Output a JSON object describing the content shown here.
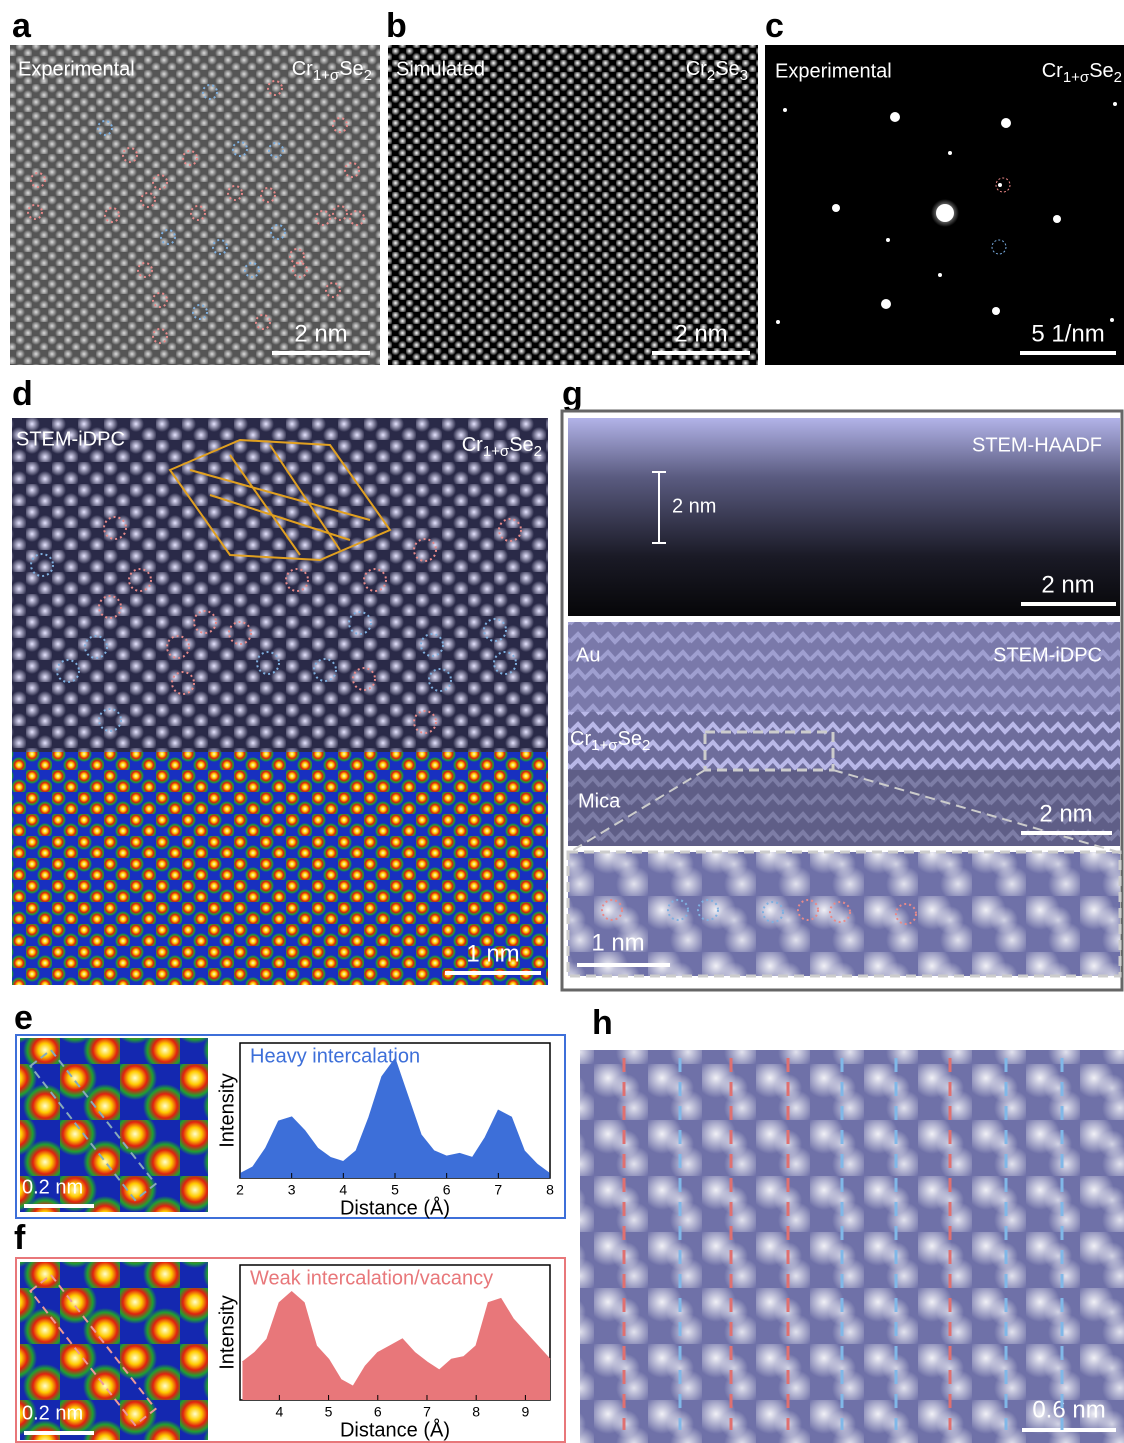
{
  "panels": {
    "a": {
      "label": "a",
      "caption": "Experimental",
      "formula": [
        "Cr",
        "1+σ",
        "Se",
        "2"
      ],
      "scale_bar": "2 nm"
    },
    "b": {
      "label": "b",
      "caption": "Simulated",
      "formula": [
        "Cr",
        "2",
        "Se",
        "3"
      ],
      "scale_bar": "2 nm"
    },
    "c": {
      "label": "c",
      "caption": "Experimental",
      "formula": [
        "Cr",
        "1+σ",
        "Se",
        "2"
      ],
      "scale_bar": "5 1/nm"
    },
    "d": {
      "label": "d",
      "caption": "STEM-iDPC",
      "formula": [
        "Cr",
        "1+σ",
        "Se",
        "2"
      ],
      "scale_bar": "1 nm"
    },
    "g": {
      "label": "g",
      "haadf_caption": "STEM-HAADF",
      "thickness": "2 nm",
      "haadf_scale_bar": "2 nm",
      "top_layer": "Au",
      "idpc_caption": "STEM-iDPC",
      "film_formula": [
        "Cr",
        "1+σ",
        "Se",
        "2"
      ],
      "substrate": "Mica",
      "idpc_scale_bar": "2 nm",
      "inset_scale_bar": "1 nm"
    },
    "e": {
      "label": "e",
      "scale_bar": "0.2 nm"
    },
    "f": {
      "label": "f",
      "scale_bar": "0.2 nm"
    },
    "h": {
      "label": "h",
      "scale_bar": "0.6 nm"
    }
  },
  "chart_data": [
    {
      "type": "area",
      "title": "Heavy intercalation",
      "y_label": "Intensity",
      "x_label": "Distance (Å)",
      "color": "#3d6fd9",
      "x": [
        2.0,
        2.25,
        2.5,
        2.75,
        3.0,
        3.25,
        3.5,
        3.75,
        4.0,
        4.25,
        4.5,
        4.75,
        5.0,
        5.25,
        5.5,
        5.75,
        6.0,
        6.25,
        6.5,
        6.75,
        7.0,
        7.25,
        7.5,
        7.75,
        8.0
      ],
      "values": [
        0.03,
        0.08,
        0.22,
        0.42,
        0.45,
        0.35,
        0.22,
        0.15,
        0.12,
        0.2,
        0.45,
        0.75,
        0.88,
        0.6,
        0.32,
        0.2,
        0.16,
        0.18,
        0.15,
        0.3,
        0.5,
        0.45,
        0.2,
        0.1,
        0.03
      ],
      "xlim": [
        2,
        8
      ],
      "xticks": [
        2,
        3,
        4,
        5,
        6,
        7,
        8
      ],
      "ylim": [
        0,
        1
      ]
    },
    {
      "type": "area",
      "title": "Weak intercalation/vacancy",
      "y_label": "Intensity",
      "x_label": "Distance (Å)",
      "color": "#e8777a",
      "x": [
        3.25,
        3.5,
        3.75,
        4.0,
        4.25,
        4.5,
        4.75,
        5.0,
        5.25,
        5.5,
        5.75,
        6.0,
        6.25,
        6.5,
        6.75,
        7.0,
        7.25,
        7.5,
        7.75,
        8.0,
        8.25,
        8.5,
        8.75,
        9.0,
        9.25,
        9.5
      ],
      "values": [
        0.28,
        0.35,
        0.45,
        0.72,
        0.8,
        0.72,
        0.4,
        0.3,
        0.15,
        0.1,
        0.25,
        0.35,
        0.4,
        0.45,
        0.35,
        0.28,
        0.22,
        0.3,
        0.32,
        0.4,
        0.72,
        0.75,
        0.6,
        0.5,
        0.4,
        0.3
      ],
      "xlim": [
        3.2,
        9.5
      ],
      "xticks": [
        4,
        5,
        6,
        7,
        8,
        9
      ],
      "ylim": [
        0,
        1
      ]
    }
  ]
}
